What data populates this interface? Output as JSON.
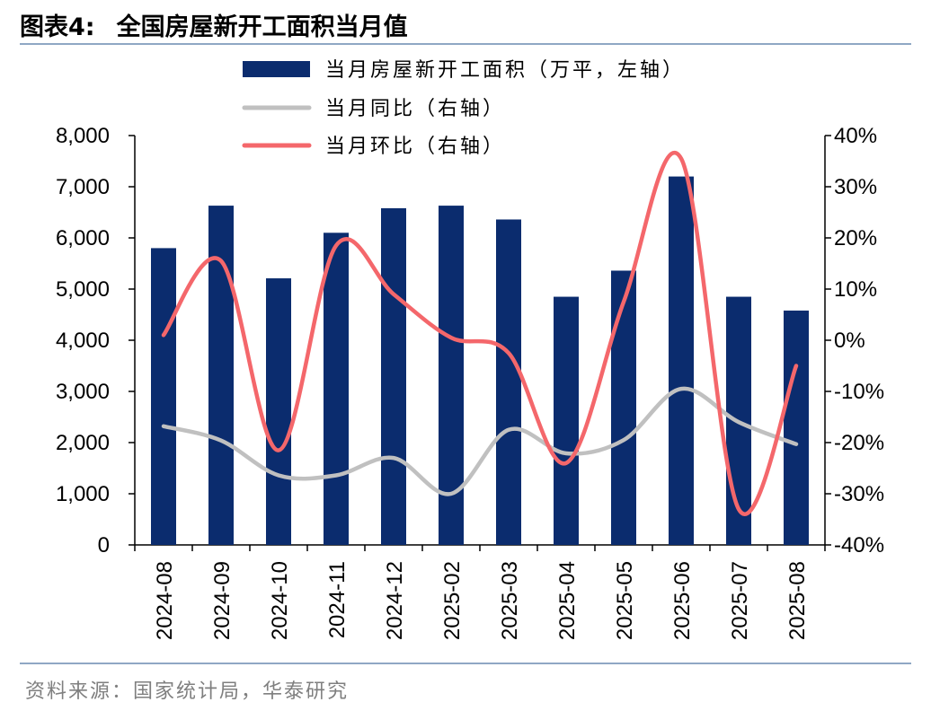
{
  "header": {
    "figure_label": "图表4:",
    "title": "全国房屋新开工面积当月值"
  },
  "source": "资料来源：国家统计局，华泰研究",
  "chart_data": {
    "type": "bar",
    "categories": [
      "2024-08",
      "2024-09",
      "2024-10",
      "2024-11",
      "2024-12",
      "2025-02",
      "2025-03",
      "2025-04",
      "2025-05",
      "2025-06",
      "2025-07",
      "2025-08"
    ],
    "series": [
      {
        "name": "当月房屋新开工面积（万平，左轴）",
        "type": "bar",
        "axis": "left",
        "color": "#0b2c6e",
        "values": [
          5800,
          6630,
          5210,
          6100,
          6580,
          6630,
          6360,
          4850,
          5360,
          7200,
          4850,
          4580
        ]
      },
      {
        "name": "当月同比（右轴）",
        "type": "line",
        "axis": "right",
        "color": "#c0c0c0",
        "values": [
          -16.8,
          -19.6,
          -26.4,
          -26.4,
          -23,
          -30,
          -17.5,
          -22.1,
          -19.5,
          -9.5,
          -16,
          -20.3
        ]
      },
      {
        "name": "当月环比（右轴）",
        "type": "line",
        "axis": "right",
        "color": "#f4676b",
        "values": [
          1,
          15.5,
          -21.5,
          18.5,
          9,
          0.5,
          -2.5,
          -24,
          7.5,
          35.5,
          -33,
          -5
        ]
      }
    ],
    "y_left": {
      "min": 0,
      "max": 8000,
      "ticks": [
        "0",
        "1,000",
        "2,000",
        "3,000",
        "4,000",
        "5,000",
        "6,000",
        "7,000",
        "8,000"
      ]
    },
    "y_right": {
      "min": -40,
      "max": 40,
      "ticks": [
        "-40%",
        "-30%",
        "-20%",
        "-10%",
        "0%",
        "10%",
        "20%",
        "30%",
        "40%"
      ]
    },
    "legend_position": "top-center",
    "grid": false
  }
}
